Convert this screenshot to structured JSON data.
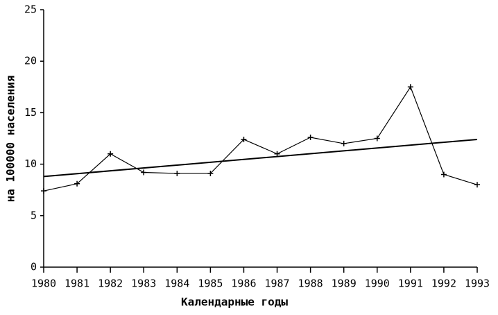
{
  "chart_data": {
    "type": "line",
    "x_label": "Календарные годы",
    "y_label": "на 100000 населения",
    "x": [
      1980,
      1981,
      1982,
      1983,
      1984,
      1985,
      1986,
      1987,
      1988,
      1989,
      1990,
      1991,
      1992,
      1993
    ],
    "series": [
      {
        "color": "#000000",
        "values": [
          7.4,
          8.1,
          11.0,
          9.2,
          9.1,
          9.1,
          12.4,
          11.0,
          12.6,
          12.0,
          12.5,
          17.5,
          9.0,
          8.0
        ]
      }
    ],
    "trend": {
      "x": [
        1980,
        1993
      ],
      "values": [
        8.8,
        12.4
      ],
      "color": "#000000"
    },
    "xlim": [
      1980,
      1993
    ],
    "xticks": [
      1980,
      1981,
      1982,
      1983,
      1984,
      1985,
      1986,
      1987,
      1988,
      1989,
      1990,
      1991,
      1992,
      1993
    ],
    "ylim": [
      0,
      25
    ],
    "yticks": [
      0,
      5,
      10,
      15,
      20,
      25
    ]
  }
}
